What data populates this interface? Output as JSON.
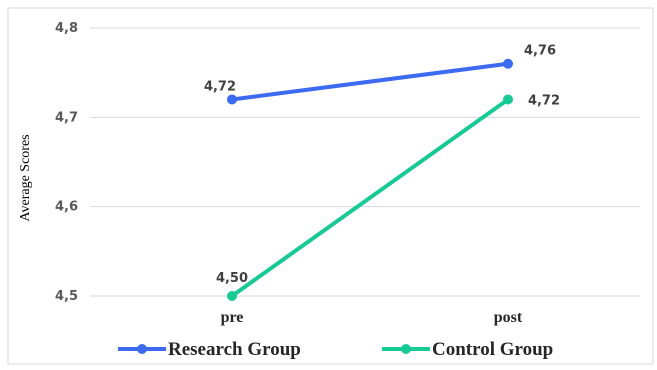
{
  "chart_data": {
    "type": "line",
    "categories": [
      "pre",
      "post"
    ],
    "ylabel": "Average Scores",
    "xlabel": "",
    "ylim": [
      4.5,
      4.8
    ],
    "yticks": [
      "4,5",
      "4,6",
      "4,7",
      "4,8"
    ],
    "grid": true,
    "legend_position": "bottom",
    "series": [
      {
        "name": "Research Group",
        "values": [
          4.72,
          4.76
        ],
        "labels": [
          "4,72",
          "4,76"
        ],
        "color": "#3c6af0"
      },
      {
        "name": "Control Group",
        "values": [
          4.5,
          4.72
        ],
        "labels": [
          "4,50",
          "4,72"
        ],
        "color": "#16c996"
      }
    ]
  }
}
